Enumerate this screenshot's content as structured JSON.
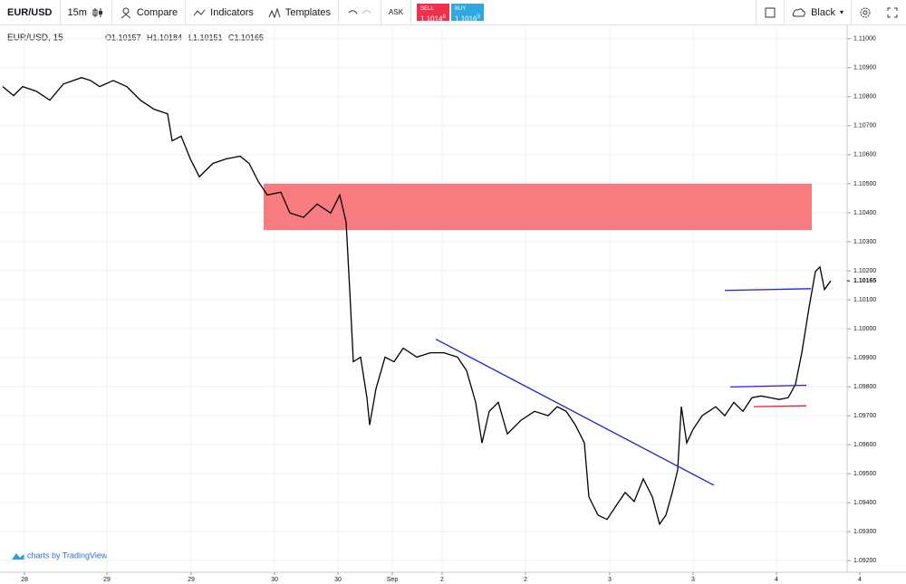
{
  "toolbar": {
    "symbol": "EUR/USD",
    "interval": "15m",
    "compare": "Compare",
    "indicators": "Indicators",
    "templates": "Templates",
    "ask": "ASK",
    "sell_label": "SELL",
    "sell_price": "1.1014",
    "sell_pip": "8",
    "buy_label": "BUY",
    "buy_price": "1.1016",
    "buy_pip": "3",
    "theme": "Black"
  },
  "legend": {
    "symbol": "EUR/USD, 15",
    "ohlc": [
      "O1.10157",
      "H1.10184",
      "L1.10151",
      "C1.10165"
    ]
  },
  "watermark": "charts by TradingView",
  "chart_data": {
    "type": "line",
    "color": "#000000",
    "x": [
      3,
      15,
      25,
      40,
      55,
      70,
      90,
      100,
      110,
      125,
      140,
      155,
      170,
      185,
      190,
      200,
      210,
      220,
      235,
      250,
      265,
      275,
      285,
      295,
      310,
      320,
      335,
      350,
      365,
      375,
      382,
      386,
      390,
      398,
      405,
      408,
      415,
      425,
      435,
      445,
      460,
      475,
      490,
      505,
      515,
      525,
      532,
      540,
      550,
      560,
      575,
      590,
      605,
      615,
      625,
      635,
      645,
      650,
      660,
      670,
      680,
      690,
      700,
      710,
      720,
      728,
      735,
      742,
      748,
      752,
      758,
      765,
      775,
      790,
      800,
      810,
      820,
      830,
      840,
      850,
      860,
      870,
      878,
      885,
      893,
      900,
      905,
      910,
      917
    ],
    "values": [
      1.10835,
      1.10804,
      1.10835,
      1.10819,
      1.10788,
      1.10844,
      1.10866,
      1.10856,
      1.10835,
      1.10856,
      1.10835,
      1.10788,
      1.10757,
      1.10741,
      1.10648,
      1.10664,
      1.10586,
      1.10524,
      1.1057,
      1.10586,
      1.10595,
      1.1057,
      1.10508,
      1.10461,
      1.10471,
      1.10399,
      1.10384,
      1.1043,
      1.10399,
      1.10461,
      1.10368,
      1.10135,
      1.09886,
      1.09902,
      1.09762,
      1.09668,
      1.09793,
      1.09902,
      1.09886,
      1.09933,
      1.09902,
      1.09917,
      1.09917,
      1.09902,
      1.09855,
      1.09746,
      1.09606,
      1.09715,
      1.09746,
      1.09637,
      1.09684,
      1.09715,
      1.097,
      1.09731,
      1.09715,
      1.09668,
      1.09606,
      1.0942,
      1.09357,
      1.09342,
      1.09389,
      1.09435,
      1.09404,
      1.09482,
      1.0942,
      1.09326,
      1.09357,
      1.09435,
      1.09513,
      1.09731,
      1.09606,
      1.09653,
      1.097,
      1.09731,
      1.097,
      1.09746,
      1.09715,
      1.09762,
      1.09768,
      1.09762,
      1.09756,
      1.09762,
      1.09808,
      1.09917,
      1.10073,
      1.10197,
      1.10213,
      1.10135,
      1.10165
    ],
    "xlim": [
      0,
      935
    ],
    "ylim": [
      1.0916,
      1.1104
    ],
    "xticks": [
      {
        "value": 27,
        "label": "28"
      },
      {
        "value": 118,
        "label": "29"
      },
      {
        "value": 211,
        "label": "29"
      },
      {
        "value": 303,
        "label": "30"
      },
      {
        "value": 373,
        "label": "30"
      },
      {
        "value": 433,
        "label": "Sep"
      },
      {
        "value": 488,
        "label": "2"
      },
      {
        "value": 580,
        "label": "2"
      },
      {
        "value": 673,
        "label": "3"
      },
      {
        "value": 765,
        "label": "3"
      },
      {
        "value": 857,
        "label": "4"
      },
      {
        "value": 949,
        "label": "4"
      }
    ],
    "yticks": [
      {
        "value": 1.092,
        "label": "1.09200"
      },
      {
        "value": 1.093,
        "label": "1.09300"
      },
      {
        "value": 1.094,
        "label": "1.09400"
      },
      {
        "value": 1.095,
        "label": "1.09500"
      },
      {
        "value": 1.096,
        "label": "1.09600"
      },
      {
        "value": 1.097,
        "label": "1.09700"
      },
      {
        "value": 1.098,
        "label": "1.09800"
      },
      {
        "value": 1.099,
        "label": "1.09900"
      },
      {
        "value": 1.1,
        "label": "1.10000"
      },
      {
        "value": 1.101,
        "label": "1.10100"
      },
      {
        "value": 1.102,
        "label": "1.10200"
      },
      {
        "value": 1.103,
        "label": "1.10300"
      },
      {
        "value": 1.104,
        "label": "1.10400"
      },
      {
        "value": 1.105,
        "label": "1.10500"
      },
      {
        "value": 1.106,
        "label": "1.10600"
      },
      {
        "value": 1.107,
        "label": "1.10700"
      },
      {
        "value": 1.108,
        "label": "1.10800"
      },
      {
        "value": 1.109,
        "label": "1.10900"
      },
      {
        "value": 1.11,
        "label": "1.11000"
      }
    ],
    "last_price": {
      "value": 1.10165,
      "label": "1.10165"
    },
    "grid": true,
    "zones": [
      {
        "xlim": [
          291,
          896
        ],
        "ylim": [
          1.1034,
          1.105
        ],
        "color": "#f77c80"
      }
    ],
    "lines": [
      {
        "x": [
          481,
          788
        ],
        "y": [
          1.09964,
          1.0946
        ],
        "color": "#1e22d6"
      },
      {
        "x": [
          800,
          895
        ],
        "y": [
          1.10132,
          1.10138
        ],
        "color": "#1e22d6"
      },
      {
        "x": [
          806,
          890
        ],
        "y": [
          1.09799,
          1.09805
        ],
        "color": "#1e22d6"
      },
      {
        "x": [
          832,
          890
        ],
        "y": [
          1.09731,
          1.09734
        ],
        "color": "#e0202a"
      }
    ]
  }
}
